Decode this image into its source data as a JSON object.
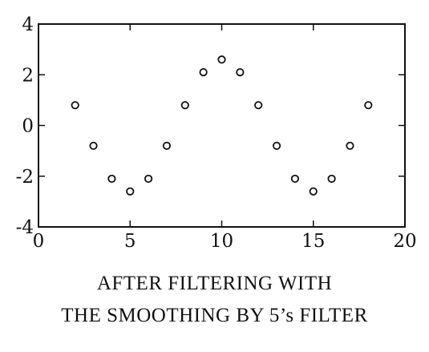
{
  "chart_data": {
    "type": "scatter",
    "title": "",
    "xlabel": "",
    "ylabel": "",
    "xlim": [
      0,
      20
    ],
    "ylim": [
      -4,
      4
    ],
    "xticks": [
      0,
      5,
      10,
      15,
      20
    ],
    "yticks": [
      -4,
      -2,
      0,
      2,
      4
    ],
    "x_tick_labels": [
      "0",
      "5",
      "10",
      "15",
      "20"
    ],
    "y_tick_labels": [
      "-4",
      "-2",
      "0",
      "2",
      "4"
    ],
    "grid": false,
    "marker": "open-circle",
    "series": [
      {
        "x": [
          2,
          3,
          4,
          5,
          6,
          7,
          8,
          9,
          10,
          11,
          12,
          13,
          14,
          15,
          16,
          17,
          18
        ],
        "y": [
          0.8,
          -0.8,
          -2.1,
          -2.6,
          -2.1,
          -0.8,
          0.8,
          2.1,
          2.6,
          2.1,
          0.8,
          -0.8,
          -2.1,
          -2.6,
          -2.1,
          -0.8,
          0.8
        ]
      }
    ]
  },
  "caption": {
    "line1": "AFTER FILTERING WITH",
    "line2": "THE SMOOTHING BY 5’s FILTER"
  },
  "colors": {
    "ink": "#111111",
    "background": "#ffffff"
  }
}
